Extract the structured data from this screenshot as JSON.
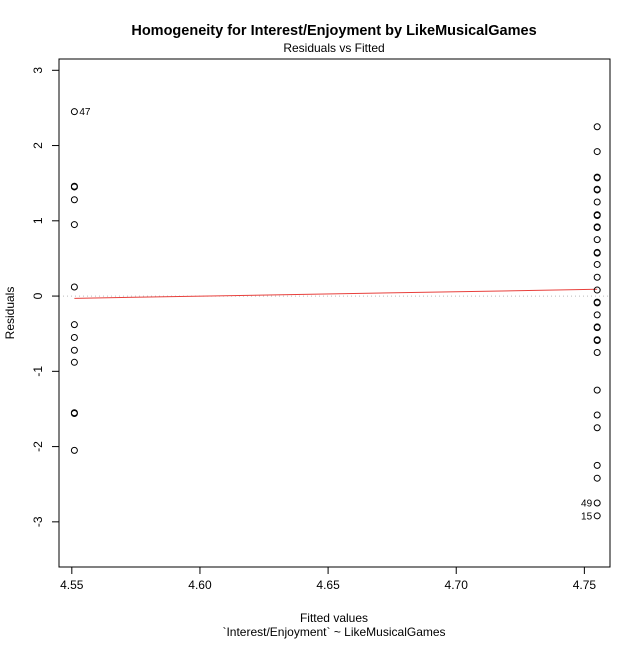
{
  "chart_data": {
    "type": "scatter",
    "title": "Homogeneity for Interest/Enjoyment by LikeMusicalGames",
    "subtitle": "Residuals vs Fitted",
    "xlabel": "Fitted values",
    "xlabel_sub": "`Interest/Enjoyment` ~ LikeMusicalGames",
    "ylabel": "Residuals",
    "xlim": [
      4.545,
      4.76
    ],
    "ylim": [
      -3.6,
      3.15
    ],
    "x_ticks": [
      4.55,
      4.6,
      4.65,
      4.7,
      4.75
    ],
    "x_tick_labels": [
      "4.55",
      "4.60",
      "4.65",
      "4.70",
      "4.75"
    ],
    "y_ticks": [
      -3,
      -2,
      -1,
      0,
      1,
      2,
      3
    ],
    "y_tick_labels": [
      "-3",
      "-2",
      "-1",
      "0",
      "1",
      "2",
      "3"
    ],
    "zero_line": {
      "y": 0,
      "color": "#bbbbbb",
      "style": "dotted"
    },
    "smooth_line": {
      "color": "#e8403c",
      "x": [
        4.551,
        4.755
      ],
      "y": [
        -0.03,
        0.09
      ]
    },
    "points": [
      {
        "x": 4.551,
        "y": 2.45
      },
      {
        "x": 4.551,
        "y": 1.46
      },
      {
        "x": 4.551,
        "y": 1.45
      },
      {
        "x": 4.551,
        "y": 1.28
      },
      {
        "x": 4.551,
        "y": 0.95
      },
      {
        "x": 4.551,
        "y": 0.12
      },
      {
        "x": 4.551,
        "y": -0.38
      },
      {
        "x": 4.551,
        "y": -0.55
      },
      {
        "x": 4.551,
        "y": -0.72
      },
      {
        "x": 4.551,
        "y": -0.88
      },
      {
        "x": 4.551,
        "y": -1.55
      },
      {
        "x": 4.551,
        "y": -1.56
      },
      {
        "x": 4.551,
        "y": -2.05
      },
      {
        "x": 4.755,
        "y": 2.25
      },
      {
        "x": 4.755,
        "y": 1.92
      },
      {
        "x": 4.755,
        "y": 1.58
      },
      {
        "x": 4.755,
        "y": 1.57
      },
      {
        "x": 4.755,
        "y": 1.42
      },
      {
        "x": 4.755,
        "y": 1.41
      },
      {
        "x": 4.755,
        "y": 1.25
      },
      {
        "x": 4.755,
        "y": 1.08
      },
      {
        "x": 4.755,
        "y": 1.07
      },
      {
        "x": 4.755,
        "y": 0.92
      },
      {
        "x": 4.755,
        "y": 0.91
      },
      {
        "x": 4.755,
        "y": 0.75
      },
      {
        "x": 4.755,
        "y": 0.58
      },
      {
        "x": 4.755,
        "y": 0.57
      },
      {
        "x": 4.755,
        "y": 0.42
      },
      {
        "x": 4.755,
        "y": 0.25
      },
      {
        "x": 4.755,
        "y": 0.08
      },
      {
        "x": 4.755,
        "y": -0.08
      },
      {
        "x": 4.755,
        "y": -0.09
      },
      {
        "x": 4.755,
        "y": -0.25
      },
      {
        "x": 4.755,
        "y": -0.41
      },
      {
        "x": 4.755,
        "y": -0.42
      },
      {
        "x": 4.755,
        "y": -0.58
      },
      {
        "x": 4.755,
        "y": -0.59
      },
      {
        "x": 4.755,
        "y": -0.75
      },
      {
        "x": 4.755,
        "y": -1.25
      },
      {
        "x": 4.755,
        "y": -1.58
      },
      {
        "x": 4.755,
        "y": -1.75
      },
      {
        "x": 4.755,
        "y": -2.25
      },
      {
        "x": 4.755,
        "y": -2.42
      },
      {
        "x": 4.755,
        "y": -2.75
      },
      {
        "x": 4.755,
        "y": -2.92
      }
    ],
    "point_labels": [
      {
        "x": 4.551,
        "y": 2.45,
        "text": "47",
        "side": "right"
      },
      {
        "x": 4.755,
        "y": -2.75,
        "text": "49",
        "side": "left"
      },
      {
        "x": 4.755,
        "y": -2.92,
        "text": "15",
        "side": "left"
      }
    ]
  }
}
